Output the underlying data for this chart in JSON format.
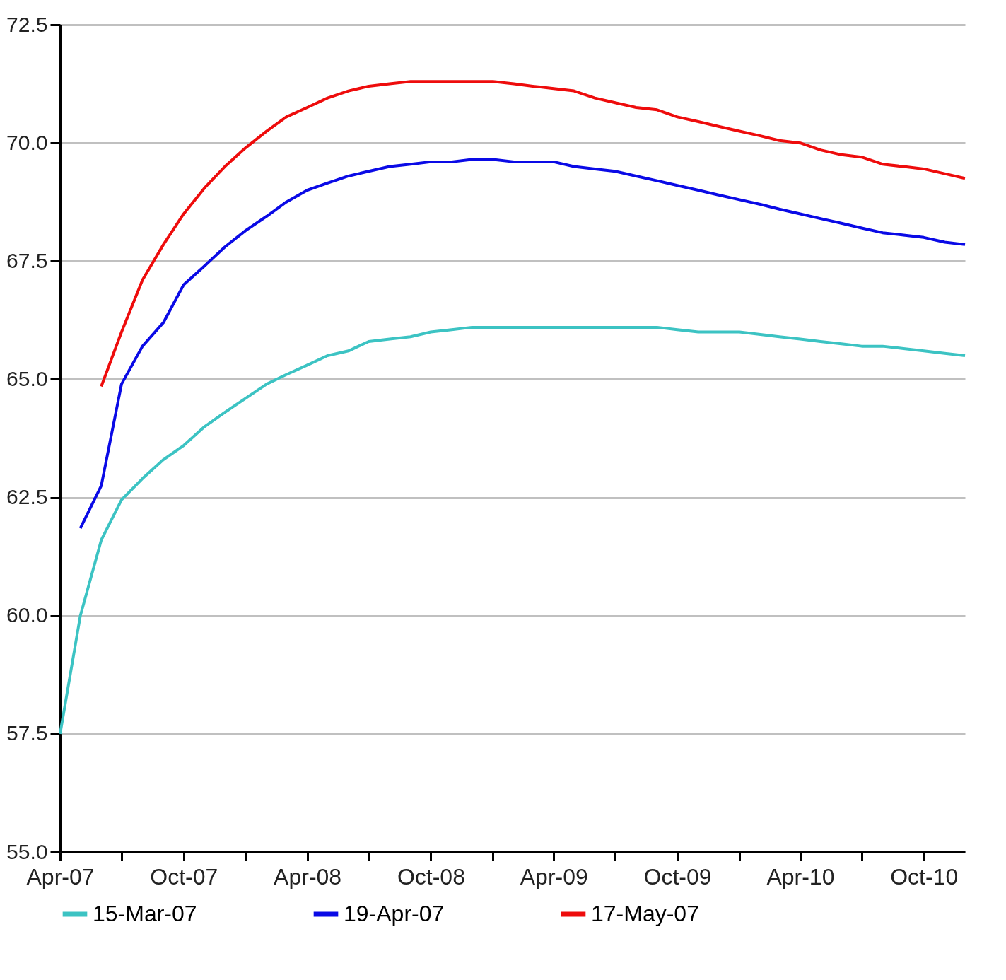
{
  "chart_data": {
    "type": "line",
    "x": [
      "2007-04",
      "2007-05",
      "2007-06",
      "2007-07",
      "2007-08",
      "2007-09",
      "2007-10",
      "2007-11",
      "2007-12",
      "2008-01",
      "2008-02",
      "2008-03",
      "2008-04",
      "2008-05",
      "2008-06",
      "2008-07",
      "2008-08",
      "2008-09",
      "2008-10",
      "2008-11",
      "2008-12",
      "2009-01",
      "2009-02",
      "2009-03",
      "2009-04",
      "2009-05",
      "2009-06",
      "2009-07",
      "2009-08",
      "2009-09",
      "2009-10",
      "2009-11",
      "2009-12",
      "2010-01",
      "2010-02",
      "2010-03",
      "2010-04",
      "2010-05",
      "2010-06",
      "2010-07",
      "2010-08",
      "2010-09",
      "2010-10",
      "2010-11",
      "2010-12"
    ],
    "series": [
      {
        "name": "15-Mar-07",
        "color": "#3cc3c3",
        "values": [
          57.5,
          60.0,
          61.6,
          62.45,
          62.9,
          63.3,
          63.6,
          64.0,
          64.3,
          64.6,
          64.9,
          65.1,
          65.3,
          65.5,
          65.6,
          65.8,
          65.85,
          65.9,
          66.0,
          66.05,
          66.1,
          66.1,
          66.1,
          66.1,
          66.1,
          66.1,
          66.1,
          66.1,
          66.1,
          66.1,
          66.05,
          66.0,
          66.0,
          66.0,
          65.95,
          65.9,
          65.85,
          65.8,
          65.75,
          65.7,
          65.7,
          65.65,
          65.6,
          65.55,
          65.5
        ]
      },
      {
        "name": "19-Apr-07",
        "color": "#0a0ae6",
        "values": [
          null,
          61.85,
          62.75,
          64.9,
          65.7,
          66.2,
          67.0,
          67.4,
          67.8,
          68.15,
          68.45,
          68.75,
          69.0,
          69.15,
          69.3,
          69.4,
          69.5,
          69.55,
          69.6,
          69.6,
          69.65,
          69.65,
          69.6,
          69.6,
          69.6,
          69.5,
          69.45,
          69.4,
          69.3,
          69.2,
          69.1,
          69.0,
          68.9,
          68.8,
          68.7,
          68.6,
          68.5,
          68.4,
          68.3,
          68.2,
          68.1,
          68.05,
          68.0,
          67.9,
          67.85
        ]
      },
      {
        "name": "17-May-07",
        "color": "#ee0c0c",
        "values": [
          null,
          null,
          64.85,
          66.0,
          67.1,
          67.85,
          68.5,
          69.05,
          69.5,
          69.9,
          70.25,
          70.55,
          70.75,
          70.95,
          71.1,
          71.2,
          71.25,
          71.3,
          71.3,
          71.3,
          71.3,
          71.3,
          71.25,
          71.2,
          71.15,
          71.1,
          70.95,
          70.85,
          70.75,
          70.7,
          70.55,
          70.45,
          70.35,
          70.25,
          70.15,
          70.05,
          70.0,
          69.85,
          69.75,
          69.7,
          69.55,
          69.5,
          69.45,
          69.35,
          69.25
        ]
      }
    ],
    "xlim": [
      "2007-04",
      "2010-12"
    ],
    "xticks": [
      {
        "value": "2007-04",
        "label": "Apr-07"
      },
      {
        "value": "2007-07",
        "label": null
      },
      {
        "value": "2007-10",
        "label": "Oct-07"
      },
      {
        "value": "2008-01",
        "label": null
      },
      {
        "value": "2008-04",
        "label": "Apr-08"
      },
      {
        "value": "2008-07",
        "label": null
      },
      {
        "value": "2008-10",
        "label": "Oct-08"
      },
      {
        "value": "2009-01",
        "label": null
      },
      {
        "value": "2009-04",
        "label": "Apr-09"
      },
      {
        "value": "2009-07",
        "label": null
      },
      {
        "value": "2009-10",
        "label": "Oct-09"
      },
      {
        "value": "2010-01",
        "label": null
      },
      {
        "value": "2010-04",
        "label": "Apr-10"
      },
      {
        "value": "2010-07",
        "label": null
      },
      {
        "value": "2010-10",
        "label": "Oct-10"
      }
    ],
    "ylim": [
      55,
      72.5
    ],
    "yticks": [
      {
        "value": 55,
        "label": "55.0"
      },
      57.5,
      {
        "value": 60,
        "label": "60.0"
      },
      62.5,
      {
        "value": 65,
        "label": "65.0"
      },
      67.5,
      {
        "value": 70,
        "label": "70.0"
      },
      72.5
    ],
    "grid": "y",
    "legend": "bottom",
    "line_style": "solid"
  }
}
